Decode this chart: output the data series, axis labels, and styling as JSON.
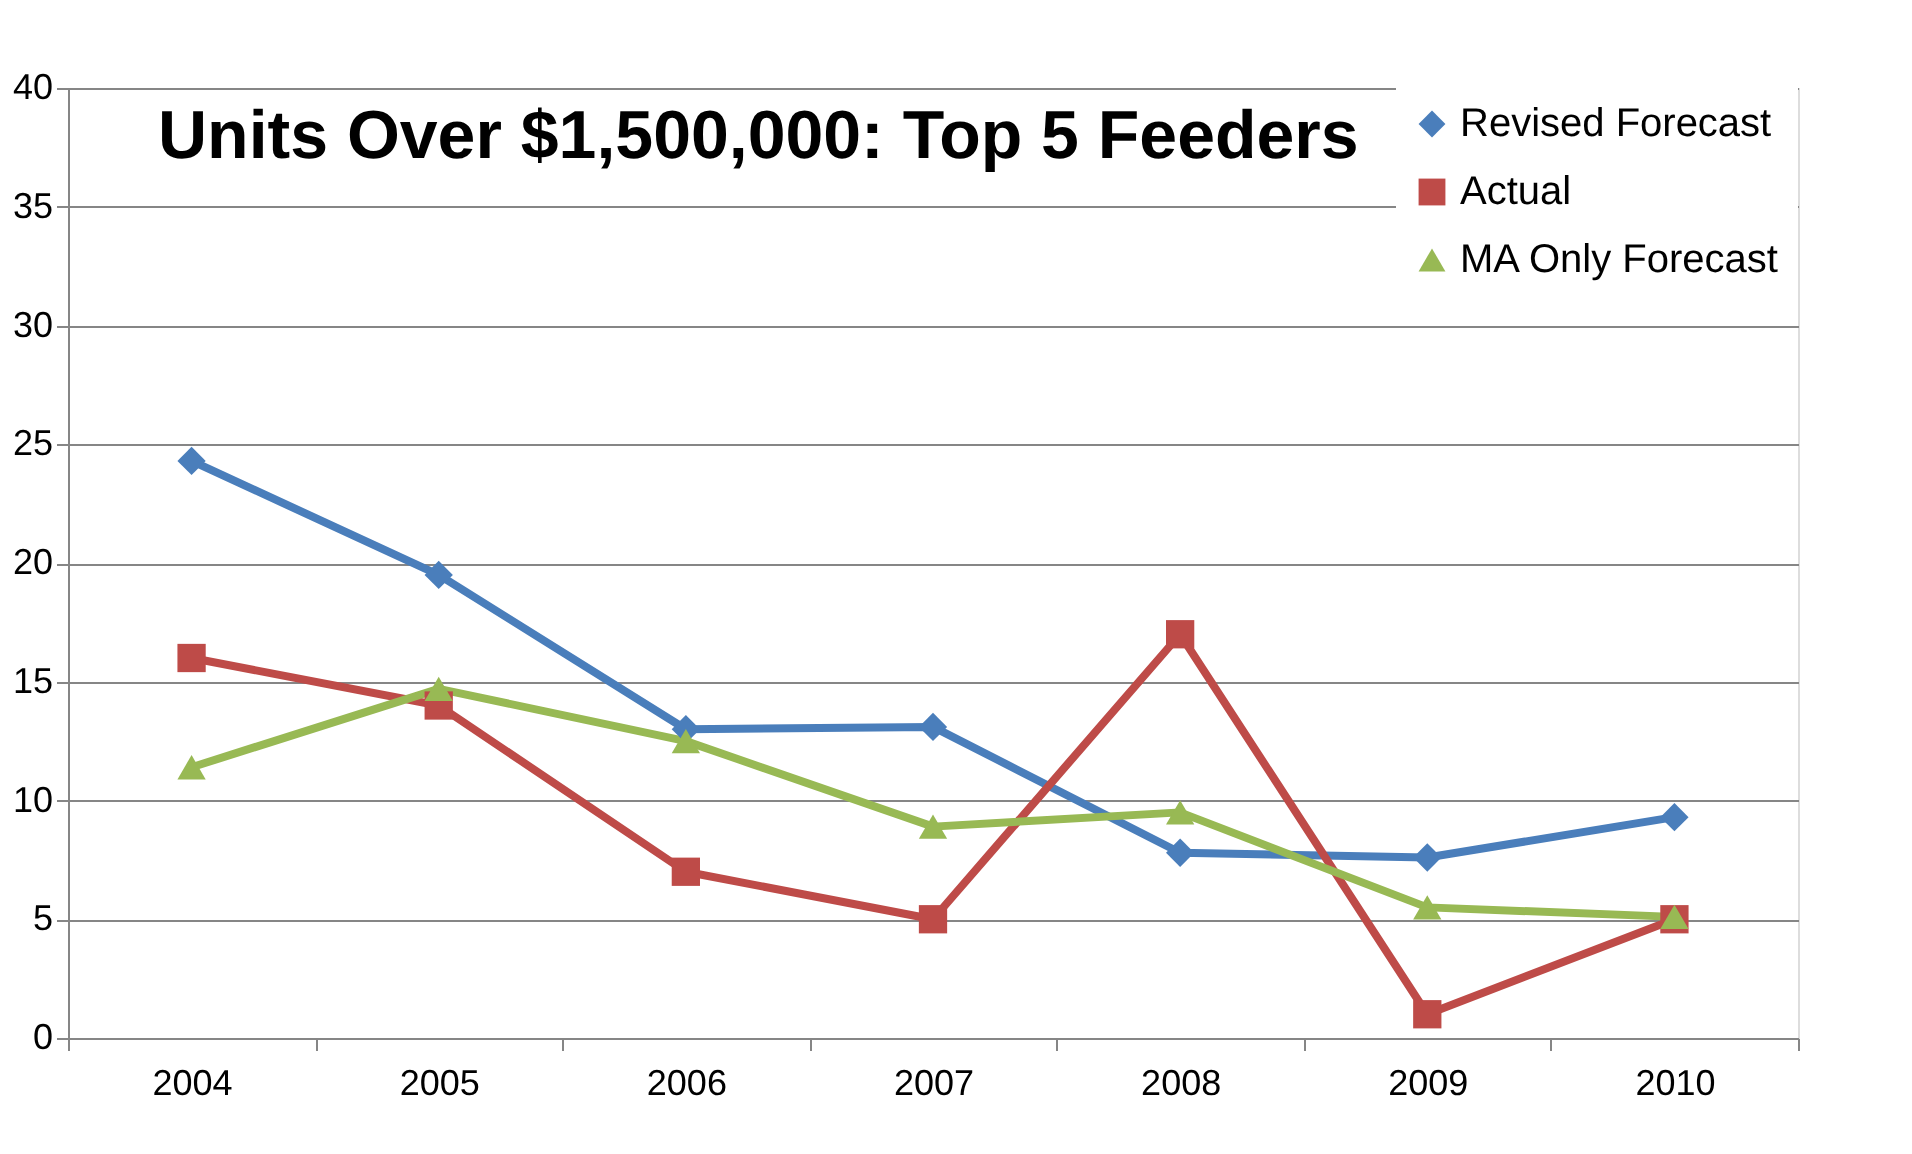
{
  "chart_data": {
    "type": "line",
    "title": "Units Over $1,500,000: Top 5 Feeders",
    "categories": [
      "2004",
      "2005",
      "2006",
      "2007",
      "2008",
      "2009",
      "2010"
    ],
    "series": [
      {
        "name": "Revised Forecast",
        "color": "#4a7ebb",
        "marker": "diamond",
        "values": [
          24.3,
          19.5,
          13.0,
          13.1,
          7.8,
          7.6,
          9.3
        ]
      },
      {
        "name": "Actual",
        "color": "#be4b48",
        "marker": "square",
        "values": [
          16,
          14,
          7,
          5,
          17,
          1,
          5
        ]
      },
      {
        "name": "MA Only Forecast",
        "color": "#98b954",
        "marker": "triangle",
        "values": [
          11.4,
          14.7,
          12.5,
          8.9,
          9.5,
          5.5,
          5.1
        ]
      }
    ],
    "ylim": [
      0,
      40
    ],
    "yticks": [
      0,
      5,
      10,
      15,
      20,
      25,
      30,
      35,
      40
    ],
    "grid": "y",
    "legend": "top right"
  }
}
